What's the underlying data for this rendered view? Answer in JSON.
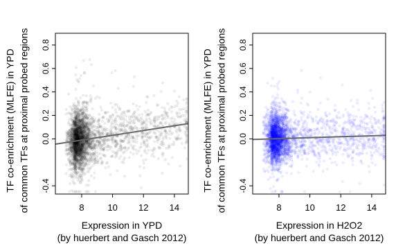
{
  "chart_data": [
    {
      "type": "scatter",
      "xlabel": "Expression in YPD",
      "xlabel_line2": "(by huerbert and Gasch 2012)",
      "ylabel": "TF co-enrichment (MLFE) in YPD",
      "ylabel_line2": "of common TFs at proximal probed regions",
      "xlim": [
        6.3,
        14.9
      ],
      "ylim": [
        -0.47,
        0.9
      ],
      "xticks": [
        8,
        10,
        12,
        14
      ],
      "yticks": [
        -0.4,
        0.0,
        0.2,
        0.4,
        0.6,
        0.8
      ],
      "grid": false,
      "legend": "none",
      "point_color": "#000000",
      "point_opacity": 0.07,
      "fit_line": {
        "x": [
          6.3,
          14.9
        ],
        "y": [
          -0.045,
          0.13
        ],
        "color": "#666666"
      },
      "point_cloud": {
        "count": 3000,
        "x_mode": 7.5,
        "y_center": -0.02,
        "y_spread": 0.12,
        "x_max": 14.8,
        "y_range": [
          -0.45,
          0.85
        ]
      }
    },
    {
      "type": "scatter",
      "xlabel": "Expression in H2O2",
      "xlabel_line2": "(by huerbert and Gasch 2012)",
      "ylabel": "TF co-enrichment (MLFE) in YPD",
      "ylabel_line2": "of common TFs at proximal probed regions",
      "xlim": [
        6.3,
        14.9
      ],
      "ylim": [
        -0.47,
        0.9
      ],
      "xticks": [
        8,
        10,
        12,
        14
      ],
      "yticks": [
        -0.4,
        0.0,
        0.2,
        0.4,
        0.6,
        0.8
      ],
      "grid": false,
      "legend": "none",
      "point_color": "#0000ff",
      "point_opacity": 0.07,
      "fit_line": {
        "x": [
          6.3,
          14.9
        ],
        "y": [
          -0.005,
          0.03
        ],
        "color": "#666666"
      },
      "point_cloud": {
        "count": 3000,
        "x_mode": 7.5,
        "y_center": 0.0,
        "y_spread": 0.11,
        "x_max": 14.8,
        "y_range": [
          -0.45,
          0.85
        ]
      }
    }
  ]
}
